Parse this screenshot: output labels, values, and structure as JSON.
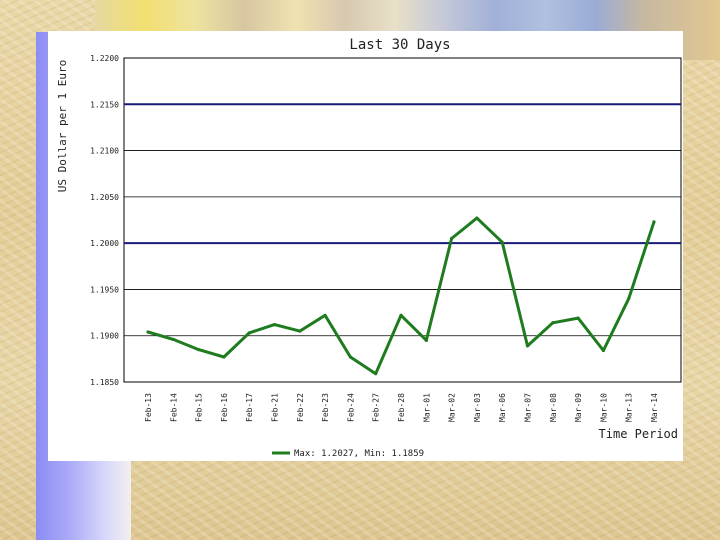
{
  "chart_data": {
    "type": "line",
    "title": "Last 30 Days",
    "xlabel": "Time Period",
    "ylabel": "US Dollar per 1 Euro",
    "ylim": [
      1.185,
      1.22
    ],
    "yticks": [
      "1.2200",
      "1.2150",
      "1.2100",
      "1.2050",
      "1.2000",
      "1.1950",
      "1.1900",
      "1.1850"
    ],
    "categories": [
      "Feb-13",
      "Feb-14",
      "Feb-15",
      "Feb-16",
      "Feb-17",
      "Feb-21",
      "Feb-22",
      "Feb-23",
      "Feb-24",
      "Feb-27",
      "Feb-28",
      "Mar-01",
      "Mar-02",
      "Mar-03",
      "Mar-06",
      "Mar-07",
      "Mar-08",
      "Mar-09",
      "Mar-10",
      "Mar-13",
      "Mar-14"
    ],
    "series": [
      {
        "name": "Max: 1.2027, Min: 1.1859",
        "values": [
          1.1904,
          1.1896,
          1.1885,
          1.1877,
          1.1903,
          1.1912,
          1.1905,
          1.1922,
          1.1877,
          1.1859,
          1.1922,
          1.1895,
          1.2005,
          1.2027,
          1.2001,
          1.1889,
          1.1914,
          1.1919,
          1.1884,
          1.194,
          1.2023
        ]
      }
    ],
    "highlight_lines": [
      1.215,
      1.2
    ],
    "grid": true,
    "legend_position": "bottom",
    "colors": {
      "series": "#1e7c1e",
      "highlight": "#1a1a78",
      "grid": "#000000"
    }
  }
}
